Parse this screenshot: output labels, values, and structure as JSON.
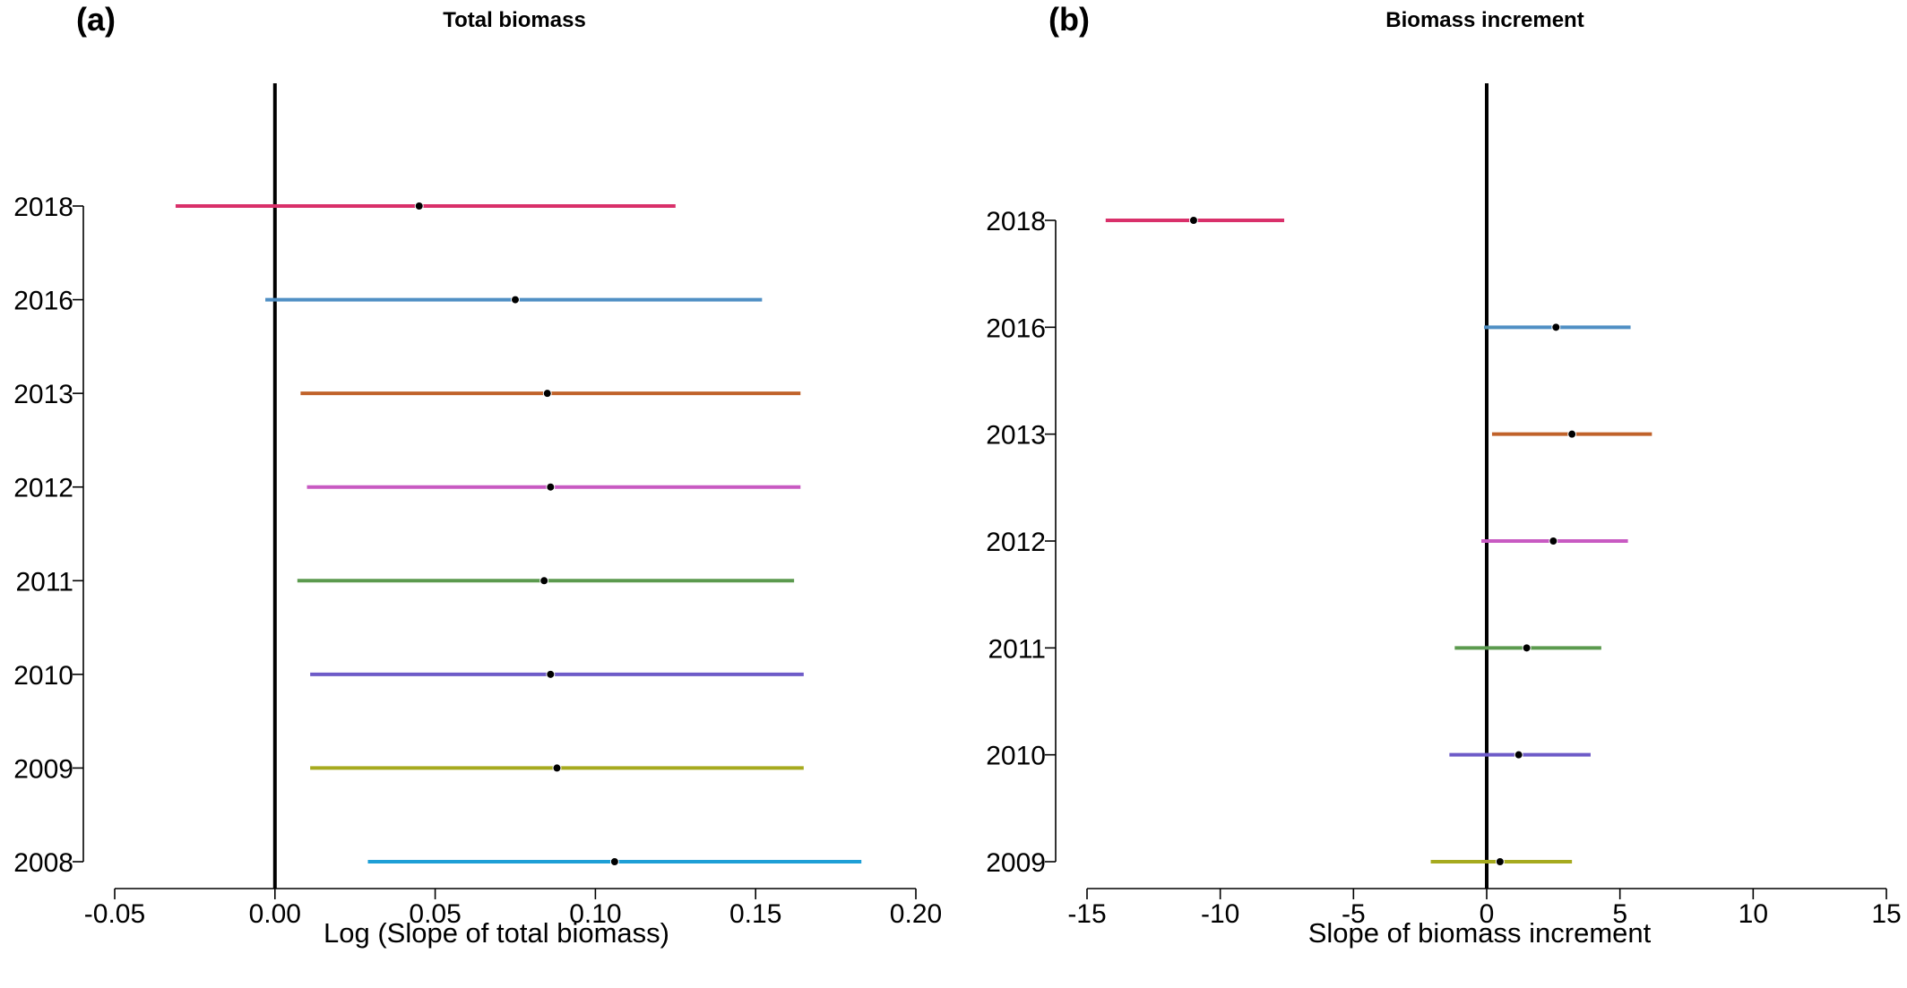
{
  "chart_data": [
    {
      "type": "forest",
      "panel_label": "(a)",
      "title": "Total biomass",
      "xlabel": "Log (Slope of total biomass)",
      "ylabel": "",
      "xlim": [
        -0.05,
        0.2
      ],
      "xticks": [
        -0.05,
        0.0,
        0.05,
        0.1,
        0.15,
        0.2
      ],
      "xtick_labels": [
        "-0.05",
        "0.00",
        "0.05",
        "0.10",
        "0.15",
        "0.20"
      ],
      "reference_line": 0,
      "categories": [
        "2008",
        "2009",
        "2010",
        "2011",
        "2012",
        "2013",
        "2016",
        "2018"
      ],
      "estimates": [
        0.106,
        0.088,
        0.086,
        0.084,
        0.086,
        0.085,
        0.075,
        0.045
      ],
      "lower": [
        0.029,
        0.011,
        0.011,
        0.007,
        0.01,
        0.008,
        -0.003,
        -0.031
      ],
      "upper": [
        0.183,
        0.165,
        0.165,
        0.162,
        0.164,
        0.164,
        0.152,
        0.125
      ],
      "colors": [
        "#1E9FD6",
        "#A6AA1E",
        "#6E5BC8",
        "#5B9A4E",
        "#C85AC2",
        "#C0622A",
        "#4F8FC4",
        "#D9306A"
      ]
    },
    {
      "type": "forest",
      "panel_label": "(b)",
      "title": "Biomass increment",
      "xlabel": "Slope of biomass increment",
      "ylabel": "",
      "xlim": [
        -15,
        15
      ],
      "xticks": [
        -15,
        -10,
        -5,
        0,
        5,
        10,
        15
      ],
      "xtick_labels": [
        "-15",
        "-10",
        "-5",
        "0",
        "5",
        "10",
        "15"
      ],
      "reference_line": 0,
      "categories": [
        "2009",
        "2010",
        "2011",
        "2012",
        "2013",
        "2016",
        "2018"
      ],
      "estimates": [
        0.5,
        1.2,
        1.5,
        2.5,
        3.2,
        2.6,
        -11.0
      ],
      "lower": [
        -2.1,
        -1.4,
        -1.2,
        -0.2,
        0.2,
        -0.1,
        -14.3
      ],
      "upper": [
        3.2,
        3.9,
        4.3,
        5.3,
        6.2,
        5.4,
        -7.6
      ],
      "colors": [
        "#A6AA1E",
        "#6E5BC8",
        "#5B9A4E",
        "#C85AC2",
        "#C0622A",
        "#4F8FC4",
        "#D9306A"
      ]
    }
  ]
}
